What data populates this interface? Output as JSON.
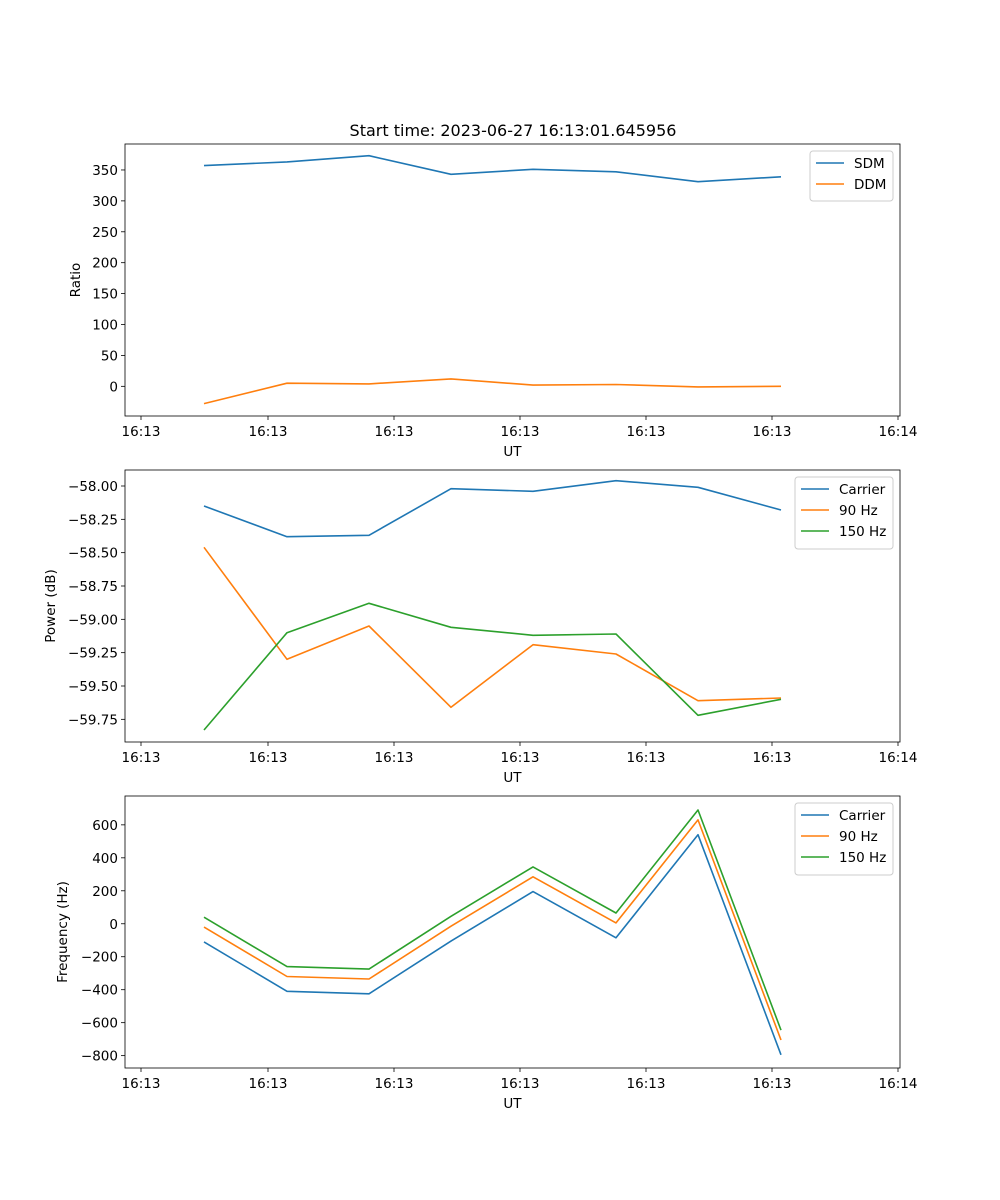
{
  "chart_data": [
    {
      "type": "line",
      "title": "Start time: 2023-06-27 16:13:01.645956",
      "xlabel": "UT",
      "ylabel": "Ratio",
      "x_tick_labels": [
        "16:13",
        "16:13",
        "16:13",
        "16:13",
        "16:13",
        "16:13",
        "16:14"
      ],
      "y_ticks": [
        0,
        50,
        100,
        150,
        200,
        250,
        300,
        350
      ],
      "ylim": [
        -48,
        392
      ],
      "legend_position": "upper-right",
      "series": [
        {
          "name": "SDM",
          "color": "#1f77b4",
          "values": [
            357,
            363,
            373,
            343,
            351,
            347,
            331,
            339
          ]
        },
        {
          "name": "DDM",
          "color": "#ff7f0e",
          "values": [
            -28,
            5,
            4,
            12,
            2,
            3,
            -1,
            0
          ]
        }
      ]
    },
    {
      "type": "line",
      "title": "",
      "xlabel": "UT",
      "ylabel": "Power (dB)",
      "x_tick_labels": [
        "16:13",
        "16:13",
        "16:13",
        "16:13",
        "16:13",
        "16:13",
        "16:14"
      ],
      "y_ticks": [
        -58.0,
        -58.25,
        -58.5,
        -58.75,
        -59.0,
        -59.25,
        -59.5,
        -59.75
      ],
      "y_tick_labels": [
        "−58.00",
        "−58.25",
        "−58.50",
        "−58.75",
        "−59.00",
        "−59.25",
        "−59.50",
        "−59.75"
      ],
      "ylim": [
        -59.92,
        -57.88
      ],
      "legend_position": "upper-right",
      "series": [
        {
          "name": "Carrier",
          "color": "#1f77b4",
          "values": [
            -58.15,
            -58.38,
            -58.37,
            -58.02,
            -58.04,
            -57.96,
            -58.01,
            -58.18
          ]
        },
        {
          "name": "90 Hz",
          "color": "#ff7f0e",
          "values": [
            -58.46,
            -59.3,
            -59.05,
            -59.66,
            -59.19,
            -59.26,
            -59.61,
            -59.59
          ]
        },
        {
          "name": "150 Hz",
          "color": "#2ca02c",
          "values": [
            -59.83,
            -59.1,
            -58.88,
            -59.06,
            -59.12,
            -59.11,
            -59.72,
            -59.6
          ]
        }
      ]
    },
    {
      "type": "line",
      "title": "",
      "xlabel": "UT",
      "ylabel": "Frequency (Hz)",
      "x_tick_labels": [
        "16:13",
        "16:13",
        "16:13",
        "16:13",
        "16:13",
        "16:13",
        "16:14"
      ],
      "y_ticks": [
        -800,
        -600,
        -400,
        -200,
        0,
        200,
        400,
        600
      ],
      "y_tick_labels": [
        "−800",
        "−600",
        "−400",
        "−200",
        "0",
        "200",
        "400",
        "600"
      ],
      "ylim": [
        -875,
        775
      ],
      "legend_position": "upper-right",
      "series": [
        {
          "name": "Carrier",
          "color": "#1f77b4",
          "values": [
            -110,
            -410,
            -425,
            -105,
            195,
            -85,
            540,
            -795
          ]
        },
        {
          "name": "90 Hz",
          "color": "#ff7f0e",
          "values": [
            -20,
            -320,
            -335,
            -15,
            285,
            5,
            630,
            -705
          ]
        },
        {
          "name": "150 Hz",
          "color": "#2ca02c",
          "values": [
            40,
            -260,
            -275,
            45,
            345,
            65,
            690,
            -645
          ]
        }
      ]
    }
  ]
}
